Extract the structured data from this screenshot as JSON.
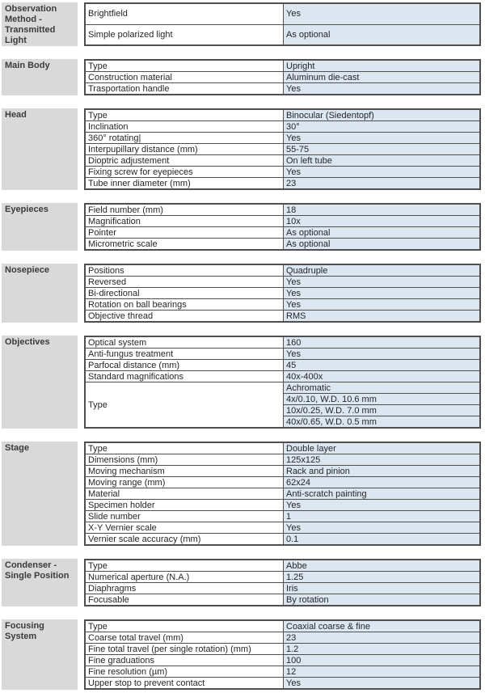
{
  "colors": {
    "section_header_bg": "#d9d9d9",
    "value_cell_bg": "#dce6f1",
    "border": "#4f4f4f",
    "text": "#262626"
  },
  "sections": [
    {
      "title": "Observation Method - Transmitted Light",
      "rows": [
        {
          "property": "Brightfield",
          "value": "Yes"
        },
        {
          "property": "Simple polarized light",
          "value": "As optional"
        }
      ]
    },
    {
      "title": "Main Body",
      "rows": [
        {
          "property": "Type",
          "value": "Upright"
        },
        {
          "property": "Construction material",
          "value": "Aluminum die-cast"
        },
        {
          "property": "Trasportation handle",
          "value": "Yes"
        }
      ]
    },
    {
      "title": "Head",
      "rows": [
        {
          "property": "Type",
          "value": "Binocular (Siedentopf)"
        },
        {
          "property": "Inclination",
          "value": "30°"
        },
        {
          "property": "360° rotating|",
          "value": "Yes"
        },
        {
          "property": "Interpupillary distance (mm)",
          "value": "55-75"
        },
        {
          "property": "Dioptric adjustement",
          "value": "On left tube"
        },
        {
          "property": "Fixing screw for eyepieces",
          "value": "Yes"
        },
        {
          "property": "Tube inner diameter (mm)",
          "value": "23"
        }
      ]
    },
    {
      "title": "Eyepieces",
      "rows": [
        {
          "property": "Field number (mm)",
          "value": "18"
        },
        {
          "property": "Magnification",
          "value": "10x"
        },
        {
          "property": "Pointer",
          "value": "As optional"
        },
        {
          "property": "Micrometric scale",
          "value": "As optional"
        }
      ]
    },
    {
      "title": "Nosepiece",
      "rows": [
        {
          "property": "Positions",
          "value": "Quadruple"
        },
        {
          "property": "Reversed",
          "value": "Yes"
        },
        {
          "property": "Bi-directional",
          "value": "Yes"
        },
        {
          "property": "Rotation on ball bearings",
          "value": "Yes"
        },
        {
          "property": "Objective thread",
          "value": "RMS"
        }
      ]
    },
    {
      "title": "Objectives",
      "rows": [
        {
          "property": "Optical system",
          "value": "160"
        },
        {
          "property": "Anti-fungus treatment",
          "value": "Yes"
        },
        {
          "property": "Parfocal distance (mm)",
          "value": "45"
        },
        {
          "property": "Standard magnifications",
          "value": "40x-400x"
        },
        {
          "property": "Type",
          "property_rowspan": 4,
          "value": "Achromatic"
        },
        {
          "property": null,
          "value": "4x/0.10, W.D. 10.6 mm"
        },
        {
          "property": null,
          "value": "10x/0.25, W.D. 7.0 mm"
        },
        {
          "property": null,
          "value": "40x/0.65, W.D. 0.5 mm"
        }
      ]
    },
    {
      "title": "Stage",
      "rows": [
        {
          "property": "Type",
          "value": "Double layer"
        },
        {
          "property": "Dimensions (mm)",
          "value": "125x125"
        },
        {
          "property": "Moving mechanism",
          "value": "Rack and pinion"
        },
        {
          "property": "Moving range (mm)",
          "value": "62x24"
        },
        {
          "property": "Material",
          "value": "Anti-scratch painting"
        },
        {
          "property": "Specimen holder",
          "value": "Yes"
        },
        {
          "property": "Slide number",
          "value": "1"
        },
        {
          "property": "X-Y Vernier scale",
          "value": "Yes"
        },
        {
          "property": "Vernier scale accuracy (mm)",
          "value": "0.1"
        }
      ]
    },
    {
      "title": "Condenser - Single Position",
      "rows": [
        {
          "property": "Type",
          "value": "Abbe"
        },
        {
          "property": "Numerical aperture (N.A.)",
          "value": "1.25"
        },
        {
          "property": "Diaphragms",
          "value": "Iris"
        },
        {
          "property": "Focusable",
          "value": "By rotation"
        }
      ]
    },
    {
      "title": "Focusing System",
      "rows": [
        {
          "property": "Type",
          "value": "Coaxial coarse & fine"
        },
        {
          "property": "Coarse total travel (mm)",
          "value": "23"
        },
        {
          "property": "Fine total travel (per single rotation) (mm)",
          "value": "1.2"
        },
        {
          "property": "Fine graduations",
          "value": "100"
        },
        {
          "property": "Fine resolution (µm)",
          "value": "12"
        },
        {
          "property": "Upper stop to prevent contact",
          "value": "Yes"
        }
      ]
    }
  ]
}
